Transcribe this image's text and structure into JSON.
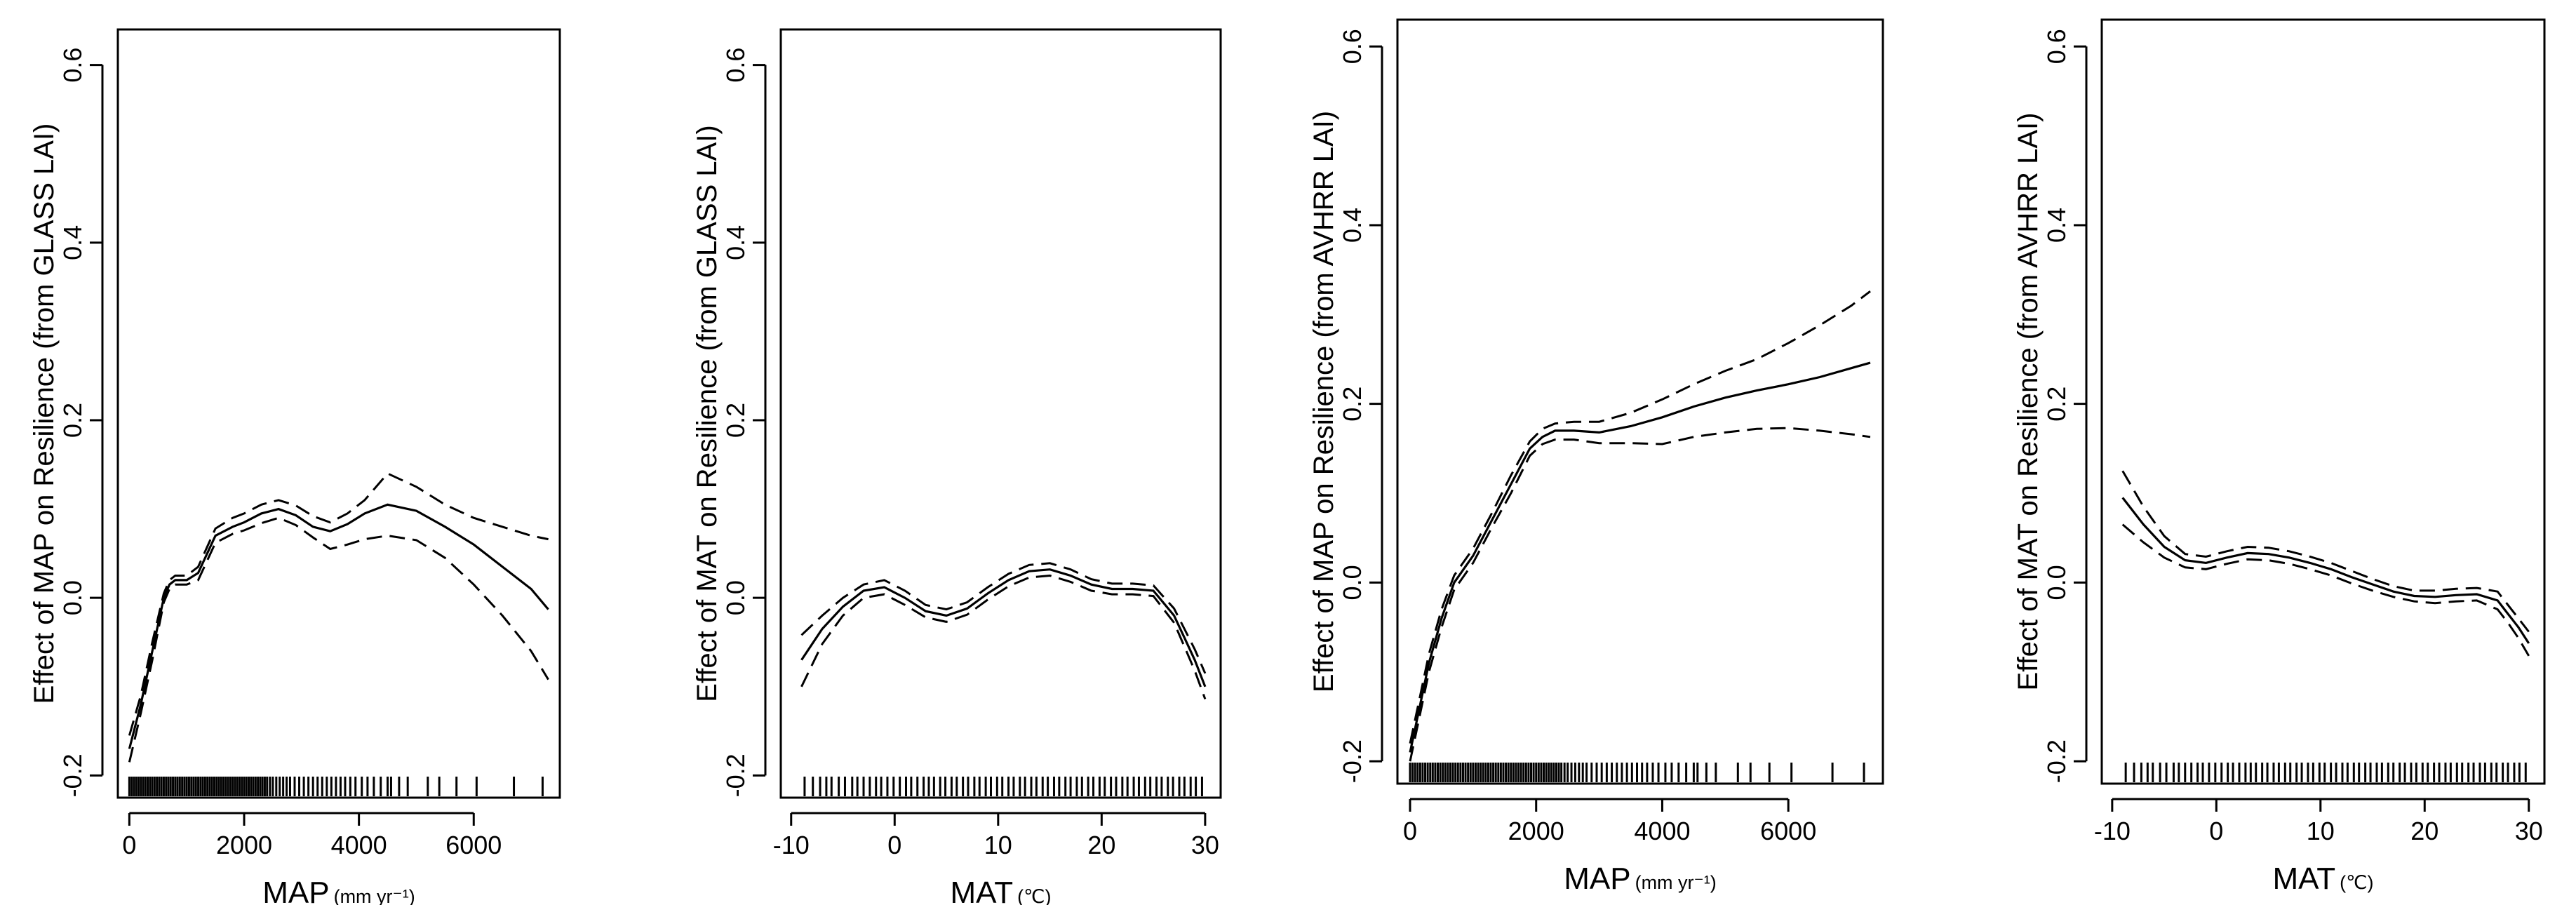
{
  "chart_data": [
    {
      "type": "line",
      "ylabel": "Effect of MAP on Resilience (from GLASS LAI)",
      "xlabel": "MAP",
      "xunit": "(mm yr⁻¹)",
      "xlim": [
        -200,
        7500
      ],
      "ylim": [
        -0.225,
        0.64
      ],
      "xticks": [
        0,
        2000,
        4000,
        6000
      ],
      "yticks": [
        -0.2,
        0.0,
        0.2,
        0.4,
        0.6
      ],
      "xtick_labels": [
        "0",
        "2000",
        "4000",
        "6000"
      ],
      "ytick_labels": [
        "-0.2",
        "0.0",
        "0.2",
        "0.4",
        "0.6"
      ],
      "series": [
        {
          "name": "fit",
          "style": "solid",
          "x": [
            0,
            200,
            400,
            600,
            700,
            800,
            1000,
            1200,
            1500,
            1800,
            2000,
            2300,
            2600,
            2900,
            3200,
            3500,
            3800,
            4100,
            4500,
            5000,
            5500,
            6000,
            6500,
            7000,
            7300
          ],
          "y": [
            -0.17,
            -0.12,
            -0.06,
            0.0,
            0.015,
            0.02,
            0.02,
            0.028,
            0.07,
            0.08,
            0.085,
            0.095,
            0.1,
            0.093,
            0.08,
            0.075,
            0.083,
            0.095,
            0.105,
            0.098,
            0.08,
            0.06,
            0.035,
            0.01,
            -0.013
          ]
        },
        {
          "name": "upper",
          "style": "dashed",
          "x": [
            0,
            200,
            400,
            600,
            700,
            800,
            1000,
            1200,
            1500,
            1800,
            2000,
            2300,
            2600,
            2900,
            3200,
            3500,
            3800,
            4100,
            4500,
            5000,
            5500,
            6000,
            6500,
            7000,
            7300
          ],
          "y": [
            -0.155,
            -0.11,
            -0.05,
            0.005,
            0.02,
            0.025,
            0.025,
            0.035,
            0.078,
            0.09,
            0.095,
            0.105,
            0.11,
            0.104,
            0.092,
            0.085,
            0.095,
            0.11,
            0.14,
            0.125,
            0.105,
            0.09,
            0.08,
            0.07,
            0.066
          ]
        },
        {
          "name": "lower",
          "style": "dashed",
          "x": [
            0,
            200,
            400,
            600,
            700,
            800,
            1000,
            1200,
            1500,
            1800,
            2000,
            2300,
            2600,
            2900,
            3200,
            3500,
            3800,
            4100,
            4500,
            5000,
            5500,
            6000,
            6500,
            7000,
            7300
          ],
          "y": [
            -0.185,
            -0.13,
            -0.07,
            -0.005,
            0.01,
            0.015,
            0.015,
            0.02,
            0.062,
            0.072,
            0.076,
            0.084,
            0.09,
            0.082,
            0.068,
            0.055,
            0.06,
            0.066,
            0.07,
            0.065,
            0.045,
            0.015,
            -0.02,
            -0.06,
            -0.092
          ]
        }
      ],
      "rug": [
        0,
        40,
        80,
        120,
        160,
        200,
        240,
        280,
        320,
        360,
        400,
        440,
        480,
        520,
        560,
        600,
        640,
        680,
        720,
        760,
        800,
        840,
        880,
        920,
        960,
        1000,
        1040,
        1080,
        1120,
        1160,
        1200,
        1240,
        1280,
        1320,
        1360,
        1400,
        1440,
        1480,
        1520,
        1560,
        1600,
        1640,
        1680,
        1720,
        1760,
        1800,
        1840,
        1880,
        1920,
        1960,
        2000,
        2040,
        2080,
        2120,
        2160,
        2200,
        2240,
        2280,
        2320,
        2360,
        2400,
        2450,
        2500,
        2560,
        2620,
        2680,
        2740,
        2800,
        2880,
        2960,
        3040,
        3120,
        3200,
        3280,
        3360,
        3440,
        3520,
        3600,
        3680,
        3760,
        3850,
        3940,
        4050,
        4150,
        4260,
        4380,
        4500,
        4560,
        4700,
        4850,
        5200,
        5400,
        5700,
        6050,
        6700,
        7200
      ]
    },
    {
      "type": "line",
      "ylabel": "Effect of MAT on Resilience (from GLASS LAI)",
      "xlabel": "MAT",
      "xunit": "(℃)",
      "xlim": [
        -11,
        31.5
      ],
      "ylim": [
        -0.225,
        0.64
      ],
      "xticks": [
        -10,
        0,
        10,
        20,
        30
      ],
      "yticks": [
        -0.2,
        0.0,
        0.2,
        0.4,
        0.6
      ],
      "xtick_labels": [
        "-10",
        "0",
        "10",
        "20",
        "30"
      ],
      "ytick_labels": [
        "-0.2",
        "0.0",
        "0.2",
        "0.4",
        "0.6"
      ],
      "series": [
        {
          "name": "fit",
          "style": "solid",
          "x": [
            -9,
            -7,
            -5,
            -3,
            -1,
            1,
            3,
            5,
            7,
            9,
            11,
            13,
            15,
            17,
            19,
            21,
            23,
            25,
            27,
            28,
            29,
            30
          ],
          "y": [
            -0.07,
            -0.035,
            -0.01,
            0.008,
            0.012,
            0.0,
            -0.015,
            -0.02,
            -0.012,
            0.005,
            0.02,
            0.03,
            0.032,
            0.025,
            0.015,
            0.01,
            0.01,
            0.008,
            -0.02,
            -0.045,
            -0.07,
            -0.1
          ]
        },
        {
          "name": "upper",
          "style": "dashed",
          "x": [
            -9,
            -7,
            -5,
            -3,
            -1,
            1,
            3,
            5,
            7,
            9,
            11,
            13,
            15,
            17,
            19,
            21,
            23,
            25,
            27,
            28,
            29,
            30
          ],
          "y": [
            -0.042,
            -0.02,
            0.0,
            0.015,
            0.02,
            0.008,
            -0.008,
            -0.013,
            -0.005,
            0.012,
            0.027,
            0.037,
            0.039,
            0.032,
            0.021,
            0.016,
            0.016,
            0.014,
            -0.012,
            -0.035,
            -0.058,
            -0.085
          ]
        },
        {
          "name": "lower",
          "style": "dashed",
          "x": [
            -9,
            -7,
            -5,
            -3,
            -1,
            1,
            3,
            5,
            7,
            9,
            11,
            13,
            15,
            17,
            19,
            21,
            23,
            25,
            27,
            28,
            29,
            30
          ],
          "y": [
            -0.1,
            -0.052,
            -0.02,
            0.0,
            0.004,
            -0.008,
            -0.022,
            -0.027,
            -0.019,
            -0.002,
            0.013,
            0.023,
            0.025,
            0.018,
            0.008,
            0.004,
            0.004,
            0.002,
            -0.028,
            -0.055,
            -0.082,
            -0.114
          ]
        }
      ],
      "rug": [
        -8.7,
        -7.9,
        -7.2,
        -6.6,
        -6.1,
        -5.4,
        -4.8,
        -4.1,
        -3.6,
        -3.0,
        -2.4,
        -1.8,
        -1.3,
        -0.7,
        -0.1,
        0.5,
        1.1,
        1.6,
        2.2,
        2.8,
        3.3,
        3.8,
        4.4,
        4.9,
        5.5,
        6.0,
        6.6,
        7.1,
        7.7,
        8.2,
        8.8,
        9.3,
        9.9,
        10.4,
        11.0,
        11.5,
        12.1,
        12.6,
        13.2,
        13.7,
        14.3,
        14.8,
        15.4,
        15.9,
        16.5,
        17.0,
        17.6,
        18.1,
        18.7,
        19.2,
        19.8,
        20.3,
        20.9,
        21.4,
        22.0,
        22.5,
        23.1,
        23.6,
        24.2,
        24.7,
        25.3,
        25.8,
        26.4,
        26.9,
        27.5,
        28.0,
        28.6,
        29.1,
        29.7
      ]
    },
    {
      "type": "line",
      "ylabel": "Effect of MAP on Resilience (from AVHRR LAI)",
      "xlabel": "MAP",
      "xunit": "(mm yr⁻¹)",
      "xlim": [
        -200,
        7500
      ],
      "ylim": [
        -0.225,
        0.63
      ],
      "xticks": [
        0,
        2000,
        4000,
        6000
      ],
      "yticks": [
        -0.2,
        0.0,
        0.2,
        0.4,
        0.6
      ],
      "xtick_labels": [
        "0",
        "2000",
        "4000",
        "6000"
      ],
      "ytick_labels": [
        "-0.2",
        "0.0",
        "0.2",
        "0.4",
        "0.6"
      ],
      "series": [
        {
          "name": "fit",
          "style": "solid",
          "x": [
            0,
            150,
            300,
            500,
            700,
            1000,
            1300,
            1600,
            1900,
            2100,
            2300,
            2600,
            3000,
            3500,
            4000,
            4500,
            5000,
            5500,
            6000,
            6500,
            7000,
            7300
          ],
          "y": [
            -0.19,
            -0.14,
            -0.09,
            -0.04,
            0.0,
            0.03,
            0.07,
            0.11,
            0.15,
            0.163,
            0.17,
            0.17,
            0.168,
            0.175,
            0.185,
            0.197,
            0.207,
            0.215,
            0.222,
            0.23,
            0.24,
            0.246
          ]
        },
        {
          "name": "upper",
          "style": "dashed",
          "x": [
            0,
            150,
            300,
            500,
            700,
            1000,
            1300,
            1600,
            1900,
            2100,
            2300,
            2600,
            3000,
            3500,
            4000,
            4500,
            5000,
            5500,
            6000,
            6500,
            7000,
            7300
          ],
          "y": [
            -0.18,
            -0.13,
            -0.08,
            -0.03,
            0.008,
            0.038,
            0.078,
            0.12,
            0.158,
            0.172,
            0.178,
            0.18,
            0.18,
            0.19,
            0.205,
            0.222,
            0.237,
            0.25,
            0.268,
            0.288,
            0.31,
            0.326
          ]
        },
        {
          "name": "lower",
          "style": "dashed",
          "x": [
            0,
            150,
            300,
            500,
            700,
            1000,
            1300,
            1600,
            1900,
            2100,
            2300,
            2600,
            3000,
            3500,
            4000,
            4500,
            5000,
            5500,
            6000,
            6500,
            7000,
            7300
          ],
          "y": [
            -0.2,
            -0.15,
            -0.1,
            -0.05,
            -0.008,
            0.022,
            0.062,
            0.1,
            0.142,
            0.155,
            0.16,
            0.16,
            0.156,
            0.156,
            0.155,
            0.163,
            0.168,
            0.172,
            0.173,
            0.17,
            0.166,
            0.163
          ]
        }
      ],
      "rug": [
        0,
        40,
        80,
        120,
        160,
        200,
        240,
        280,
        320,
        360,
        400,
        440,
        480,
        520,
        560,
        600,
        640,
        680,
        720,
        760,
        800,
        840,
        880,
        920,
        960,
        1000,
        1040,
        1080,
        1120,
        1160,
        1200,
        1240,
        1280,
        1320,
        1360,
        1400,
        1440,
        1480,
        1520,
        1560,
        1600,
        1640,
        1680,
        1720,
        1760,
        1800,
        1840,
        1880,
        1920,
        1960,
        2000,
        2040,
        2080,
        2120,
        2160,
        2200,
        2240,
        2280,
        2320,
        2360,
        2400,
        2450,
        2500,
        2560,
        2620,
        2680,
        2740,
        2800,
        2880,
        2960,
        3040,
        3120,
        3200,
        3280,
        3360,
        3440,
        3520,
        3600,
        3680,
        3760,
        3850,
        3940,
        4050,
        4150,
        4260,
        4380,
        4500,
        4560,
        4700,
        4850,
        5200,
        5400,
        5700,
        6050,
        6700,
        7200
      ]
    },
    {
      "type": "line",
      "ylabel": "Effect of MAT on Resilience (from AVHRR LAI)",
      "xlabel": "MAT",
      "xunit": "(℃)",
      "xlim": [
        -11,
        31.5
      ],
      "ylim": [
        -0.225,
        0.63
      ],
      "xticks": [
        -10,
        0,
        10,
        20,
        30
      ],
      "yticks": [
        -0.2,
        0.0,
        0.2,
        0.4,
        0.6
      ],
      "xtick_labels": [
        "-10",
        "0",
        "10",
        "20",
        "30"
      ],
      "ytick_labels": [
        "-0.2",
        "0.0",
        "0.2",
        "0.4",
        "0.6"
      ],
      "series": [
        {
          "name": "fit",
          "style": "solid",
          "x": [
            -9,
            -7,
            -5,
            -3,
            -1,
            1,
            3,
            5,
            7,
            9,
            11,
            13,
            15,
            17,
            19,
            21,
            23,
            25,
            27,
            28,
            29,
            30
          ],
          "y": [
            0.095,
            0.065,
            0.04,
            0.025,
            0.022,
            0.028,
            0.033,
            0.032,
            0.028,
            0.022,
            0.015,
            0.006,
            -0.002,
            -0.01,
            -0.015,
            -0.016,
            -0.014,
            -0.013,
            -0.02,
            -0.035,
            -0.05,
            -0.068
          ]
        },
        {
          "name": "upper",
          "style": "dashed",
          "x": [
            -9,
            -7,
            -5,
            -3,
            -1,
            1,
            3,
            5,
            7,
            9,
            11,
            13,
            15,
            17,
            19,
            21,
            23,
            25,
            27,
            28,
            29,
            30
          ],
          "y": [
            0.125,
            0.085,
            0.052,
            0.032,
            0.029,
            0.035,
            0.04,
            0.039,
            0.035,
            0.029,
            0.022,
            0.013,
            0.004,
            -0.004,
            -0.009,
            -0.009,
            -0.007,
            -0.006,
            -0.01,
            -0.025,
            -0.04,
            -0.055
          ]
        },
        {
          "name": "lower",
          "style": "dashed",
          "x": [
            -9,
            -7,
            -5,
            -3,
            -1,
            1,
            3,
            5,
            7,
            9,
            11,
            13,
            15,
            17,
            19,
            21,
            23,
            25,
            27,
            28,
            29,
            30
          ],
          "y": [
            0.065,
            0.045,
            0.028,
            0.017,
            0.015,
            0.021,
            0.026,
            0.025,
            0.021,
            0.015,
            0.008,
            -0.001,
            -0.009,
            -0.016,
            -0.021,
            -0.023,
            -0.021,
            -0.02,
            -0.03,
            -0.045,
            -0.062,
            -0.082
          ]
        }
      ],
      "rug": [
        -8.7,
        -7.9,
        -7.2,
        -6.6,
        -6.1,
        -5.4,
        -4.8,
        -4.1,
        -3.6,
        -3.0,
        -2.4,
        -1.8,
        -1.3,
        -0.7,
        -0.1,
        0.5,
        1.1,
        1.6,
        2.2,
        2.8,
        3.3,
        3.8,
        4.4,
        4.9,
        5.5,
        6.0,
        6.6,
        7.1,
        7.7,
        8.2,
        8.8,
        9.3,
        9.9,
        10.4,
        11.0,
        11.5,
        12.1,
        12.6,
        13.2,
        13.7,
        14.3,
        14.8,
        15.4,
        15.9,
        16.5,
        17.0,
        17.6,
        18.1,
        18.7,
        19.2,
        19.8,
        20.3,
        20.9,
        21.4,
        22.0,
        22.5,
        23.1,
        23.6,
        24.2,
        24.7,
        25.3,
        25.8,
        26.4,
        26.9,
        27.5,
        28.0,
        28.6,
        29.1,
        29.7
      ]
    }
  ]
}
